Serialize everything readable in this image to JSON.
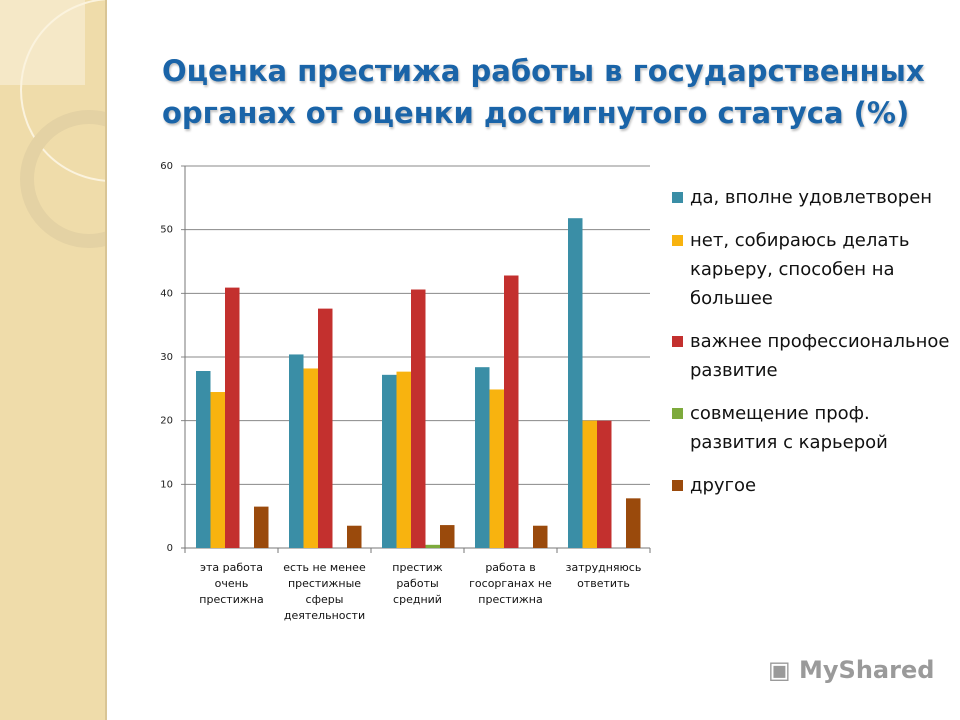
{
  "title": "Оценка престижа работы в государственных органах от оценки достигнутого статуса (%)",
  "watermark": "MyShared",
  "chart_data": {
    "type": "bar",
    "title": "Оценка престижа работы в государственных органах от оценки достигнутого статуса (%)",
    "categories": [
      "эта работа очень престижна",
      "есть не менее престижные сферы деятельности",
      "престиж работы средний",
      "работа в госорганах не престижна",
      "затрудняюсь ответить"
    ],
    "series": [
      {
        "name": "да, вполне удовлетворен",
        "color": "#3a8ea6",
        "values": [
          27.8,
          30.4,
          27.2,
          28.4,
          51.8
        ]
      },
      {
        "name": "нет, собираюсь делать карьеру, способен на большее",
        "color": "#f8b30f",
        "values": [
          24.5,
          28.2,
          27.7,
          24.9,
          20
        ]
      },
      {
        "name": "важнее профессиональное развитие",
        "color": "#c3302e",
        "values": [
          40.9,
          37.6,
          40.6,
          42.8,
          20
        ]
      },
      {
        "name": "совмещение проф. развития с карьерой",
        "color": "#7daa3c",
        "values": [
          0,
          0,
          0.5,
          0,
          0
        ]
      },
      {
        "name": "другое",
        "color": "#9a4a0c",
        "values": [
          6.5,
          3.5,
          3.6,
          3.5,
          7.8
        ]
      }
    ],
    "ylim": [
      0,
      60
    ],
    "yticks": [
      "0",
      "10",
      "20",
      "30",
      "40",
      "50",
      "60"
    ],
    "grid": true,
    "legend": "right"
  }
}
